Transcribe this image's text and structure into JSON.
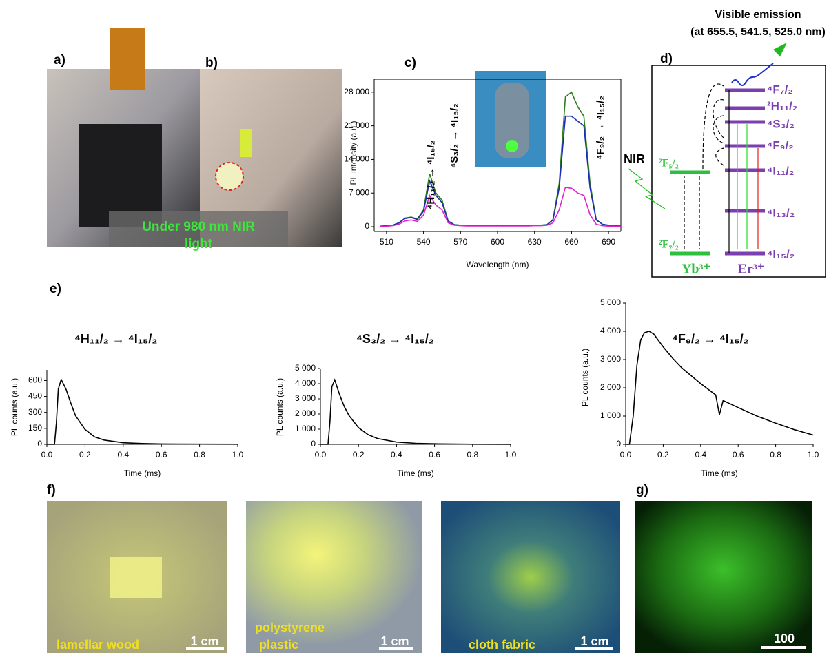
{
  "panels": [
    "a)",
    "b)",
    "c)",
    "d)",
    "e)",
    "f)",
    "g)"
  ],
  "photo_labels": {
    "under_nir": [
      "Under 980 nm  NIR",
      "light"
    ],
    "wood": "lamellar wood",
    "wood_scale": "1 cm",
    "plastic": [
      "polystyrene",
      "plastic"
    ],
    "plastic_scale": "1 cm",
    "fabric": "cloth fabric",
    "fabric_scale": "1 cm",
    "g_scale": "100"
  },
  "diagram": {
    "emission": [
      "Visible emission",
      "(at 655.5, 541.5, 525.0 nm)"
    ],
    "nir": "NIR",
    "yb_levels": [
      "²F₅/₂",
      "²F₇/₂"
    ],
    "yb": "Yb³⁺",
    "er": "Er³⁺",
    "er_levels": [
      "⁴F₇/₂",
      "²H₁₁/₂",
      "⁴S₃/₂",
      "⁴F₉/₂",
      "⁴I₁₁/₂",
      "⁴I₁₃/₂",
      "⁴I₁₅/₂"
    ]
  },
  "chart_data": [
    {
      "type": "line",
      "x_label": "Wavelength (nm)",
      "y_label": "PL intensity (a.u.)",
      "x": [
        505,
        510,
        515,
        520,
        525,
        530,
        535,
        540,
        545,
        550,
        555,
        560,
        565,
        570,
        575,
        580,
        585,
        590,
        595,
        600,
        605,
        610,
        615,
        620,
        625,
        630,
        635,
        640,
        645,
        650,
        655,
        660,
        665,
        670,
        675,
        680,
        685,
        690,
        695,
        700
      ],
      "series": [
        {
          "color": "#2e7d1e",
          "values": [
            100,
            200,
            300,
            800,
            1800,
            2000,
            1600,
            3500,
            11000,
            7000,
            5500,
            1200,
            400,
            300,
            250,
            200,
            200,
            200,
            200,
            200,
            200,
            200,
            200,
            200,
            250,
            300,
            300,
            400,
            1500,
            9000,
            27000,
            28000,
            25000,
            23000,
            9000,
            1500,
            500,
            300,
            200,
            150
          ]
        },
        {
          "color": "#1a2fb0",
          "values": [
            100,
            200,
            300,
            800,
            1700,
            1900,
            1500,
            3200,
            9500,
            6500,
            5000,
            1100,
            400,
            300,
            250,
            200,
            200,
            200,
            200,
            200,
            200,
            200,
            200,
            200,
            250,
            300,
            300,
            400,
            1400,
            8000,
            23000,
            23000,
            22000,
            21000,
            8000,
            1400,
            500,
            300,
            200,
            150
          ]
        },
        {
          "color": "#e020d0",
          "values": [
            50,
            100,
            200,
            500,
            1200,
            1400,
            1100,
            2400,
            6500,
            4500,
            3500,
            800,
            300,
            200,
            150,
            150,
            150,
            150,
            150,
            150,
            150,
            150,
            150,
            150,
            150,
            200,
            200,
            300,
            800,
            3500,
            8200,
            8000,
            7000,
            6500,
            2500,
            500,
            200,
            100,
            100,
            80
          ]
        }
      ],
      "xlim": [
        500,
        700
      ],
      "ylim": [
        -1000,
        30700
      ],
      "xticks": [
        510,
        540,
        570,
        600,
        630,
        660,
        690
      ],
      "yticks": [
        0,
        {
          "value": 7000,
          "label": "7 000"
        },
        {
          "value": 14000,
          "label": "14 000"
        },
        {
          "value": 21000,
          "label": "21 000"
        },
        {
          "value": 28000,
          "label": "28 000"
        }
      ],
      "annotations": [
        "⁴H₁₁/₂ → ⁴I₁₅/₂",
        "⁴S₃/₂ → ⁴I₁₅/₂",
        "⁴F₉/₂ → ⁴I₁₅/₂"
      ]
    },
    {
      "type": "line",
      "x_label": "Time (ms)",
      "y_label": "PL counts (a.u.)",
      "x": [
        0,
        0.04,
        0.05,
        0.06,
        0.075,
        0.1,
        0.125,
        0.15,
        0.2,
        0.25,
        0.3,
        0.4,
        0.5,
        0.6,
        0.8,
        1.0
      ],
      "series": [
        {
          "color": "#000000",
          "values": [
            0,
            0,
            200,
            520,
            610,
            520,
            390,
            270,
            140,
            70,
            40,
            15,
            8,
            4,
            2,
            1
          ]
        }
      ],
      "xlim": [
        0,
        1
      ],
      "ylim": [
        0,
        700
      ],
      "xticks": [
        {
          "value": 0,
          "label": "0.0"
        },
        0.2,
        0.4,
        0.6,
        0.8,
        {
          "value": 1,
          "label": "1.0"
        }
      ],
      "yticks": [
        0,
        150,
        300,
        450,
        600
      ],
      "annotations": [
        "⁴H₁₁/₂ → ⁴I₁₅/₂"
      ]
    },
    {
      "type": "line",
      "x_label": "Time (ms)",
      "y_label": "PL counts (a.u.)",
      "x": [
        0,
        0.04,
        0.05,
        0.06,
        0.075,
        0.1,
        0.125,
        0.15,
        0.2,
        0.25,
        0.3,
        0.4,
        0.5,
        0.6,
        0.8,
        1.0
      ],
      "series": [
        {
          "color": "#000000",
          "values": [
            0,
            0,
            1500,
            3800,
            4250,
            3300,
            2500,
            1900,
            1100,
            640,
            380,
            150,
            70,
            35,
            10,
            5
          ]
        }
      ],
      "xlim": [
        0,
        1
      ],
      "ylim": [
        0,
        5000
      ],
      "xticks": [
        {
          "value": 0,
          "label": "0.0"
        },
        0.2,
        0.4,
        0.6,
        0.8,
        {
          "value": 1,
          "label": "1.0"
        }
      ],
      "yticks": [
        0,
        {
          "value": 1000,
          "label": "1 000"
        },
        {
          "value": 2000,
          "label": "2 000"
        },
        {
          "value": 3000,
          "label": "3 000"
        },
        {
          "value": 4000,
          "label": "4 000"
        },
        {
          "value": 5000,
          "label": "5 000"
        }
      ],
      "annotations": [
        "⁴S₃/₂ → ⁴I₁₅/₂"
      ]
    },
    {
      "type": "line",
      "x_label": "Time (ms)",
      "y_label": "PL counts (a.u.)",
      "x": [
        0,
        0.02,
        0.04,
        0.06,
        0.08,
        0.1,
        0.125,
        0.15,
        0.2,
        0.25,
        0.3,
        0.4,
        0.48,
        0.5,
        0.52,
        0.6,
        0.7,
        0.8,
        0.9,
        1.0
      ],
      "series": [
        {
          "color": "#000000",
          "values": [
            0,
            0,
            1000,
            2800,
            3700,
            3950,
            4000,
            3900,
            3450,
            3050,
            2700,
            2150,
            1750,
            1050,
            1550,
            1300,
            1000,
            750,
            520,
            330
          ]
        }
      ],
      "xlim": [
        0,
        1
      ],
      "ylim": [
        0,
        5000
      ],
      "xticks": [
        {
          "value": 0,
          "label": "0.0"
        },
        0.2,
        0.4,
        0.6,
        0.8,
        {
          "value": 1,
          "label": "1.0"
        }
      ],
      "yticks": [
        0,
        {
          "value": 1000,
          "label": "1 000"
        },
        {
          "value": 2000,
          "label": "2 000"
        },
        {
          "value": 3000,
          "label": "3 000"
        },
        {
          "value": 4000,
          "label": "4 000"
        },
        {
          "value": 5000,
          "label": "5 000"
        }
      ],
      "annotations": [
        "⁴F₉/₂ → ⁴I₁₅/₂"
      ]
    }
  ]
}
